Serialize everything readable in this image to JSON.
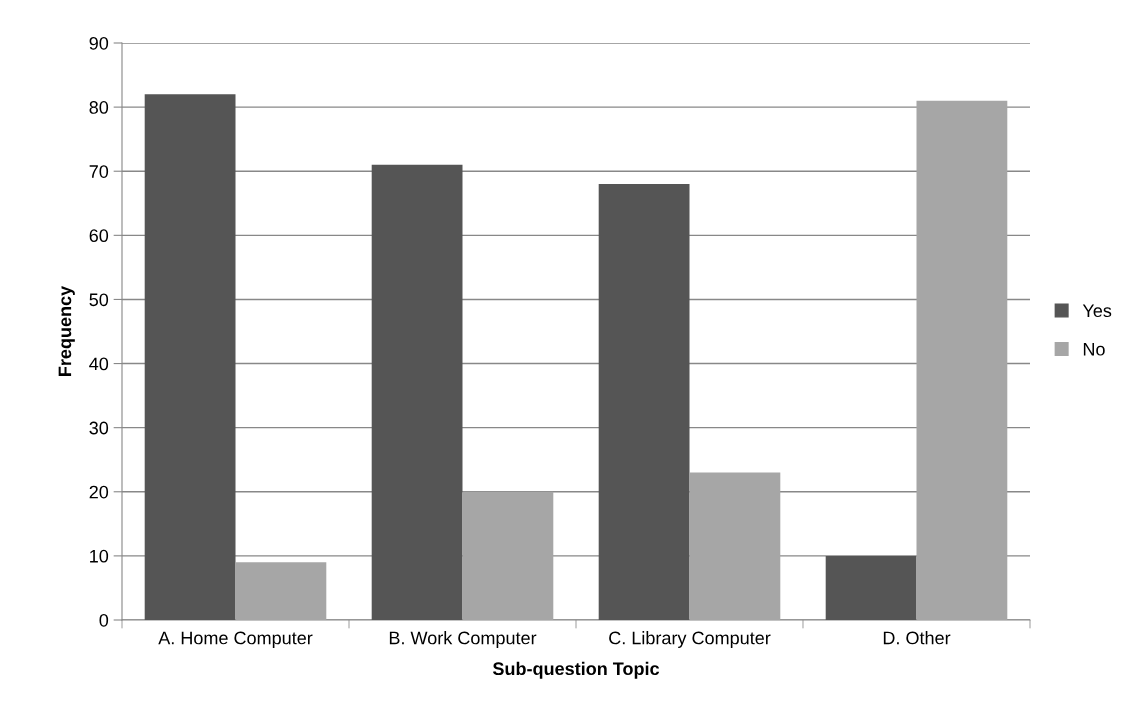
{
  "chart_data": {
    "type": "bar",
    "xlabel": "Sub-question Topic",
    "ylabel": "Frequency",
    "categories": [
      "A. Home Computer",
      "B. Work Computer",
      "C. Library Computer",
      "D. Other"
    ],
    "series": [
      {
        "name": "Yes",
        "color": "#555555",
        "values": [
          82,
          71,
          68,
          10
        ]
      },
      {
        "name": "No",
        "color": "#a6a6a6",
        "values": [
          9,
          20,
          23,
          81
        ]
      }
    ],
    "ylim": [
      0,
      90
    ],
    "yticks": [
      0,
      10,
      20,
      30,
      40,
      50,
      60,
      70,
      80,
      90
    ],
    "grid": "y",
    "legend": "right"
  }
}
